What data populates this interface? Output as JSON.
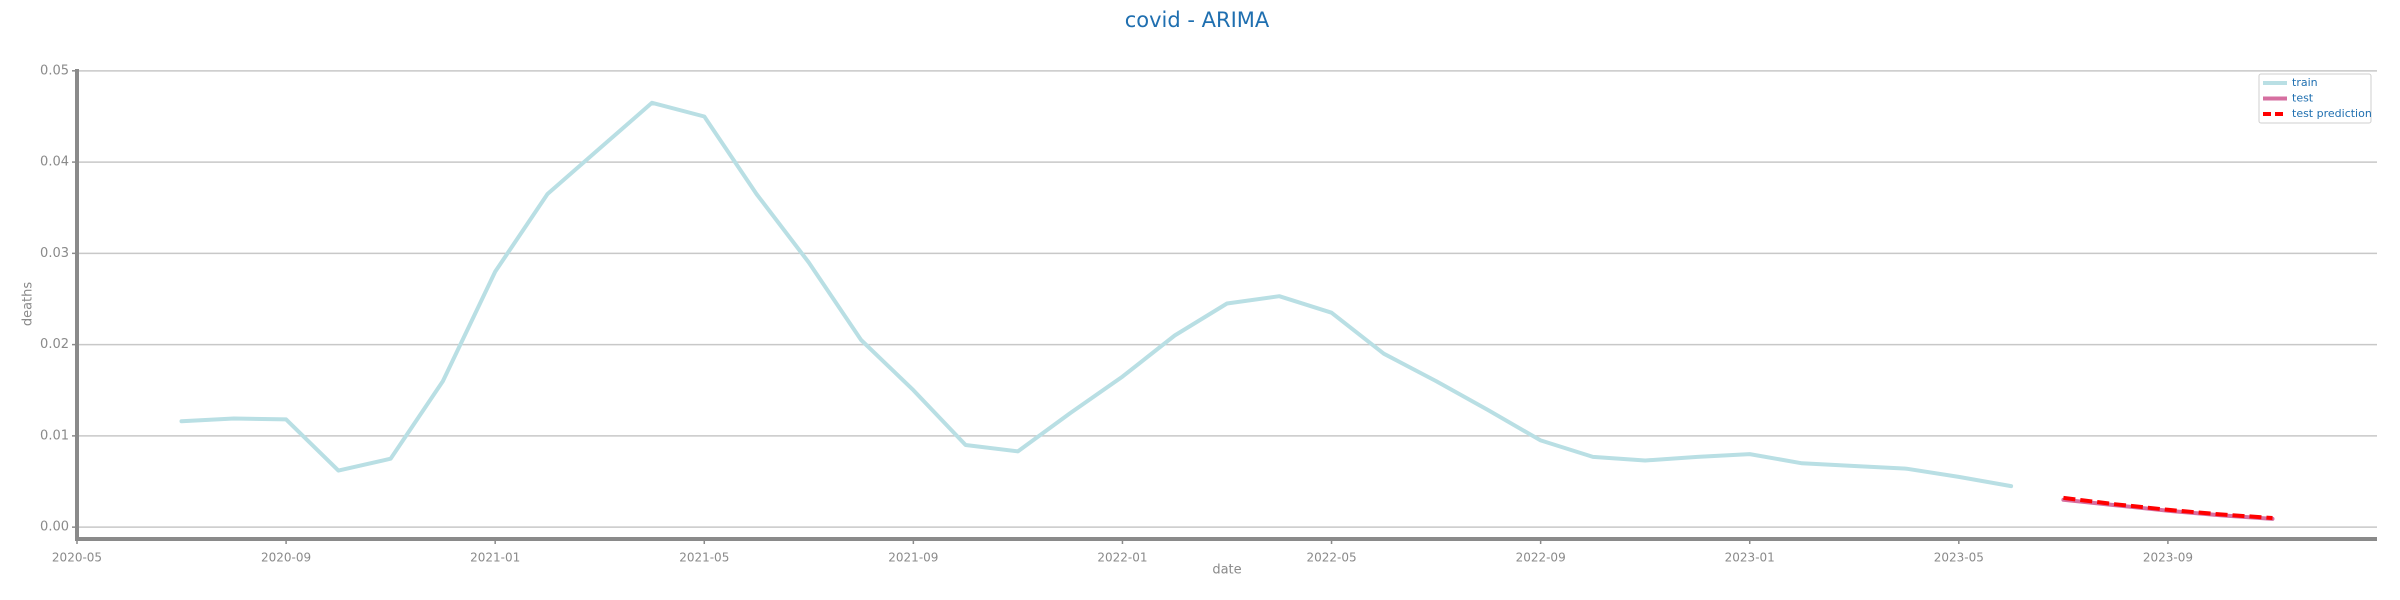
{
  "chart_data": {
    "type": "line",
    "title": "covid - ARIMA",
    "xlabel": "date",
    "ylabel": "deaths",
    "x": [
      "2020-07",
      "2020-08",
      "2020-09",
      "2020-10",
      "2020-11",
      "2020-12",
      "2021-01",
      "2021-02",
      "2021-03",
      "2021-04",
      "2021-05",
      "2021-06",
      "2021-07",
      "2021-08",
      "2021-09",
      "2021-10",
      "2021-11",
      "2021-12",
      "2022-01",
      "2022-02",
      "2022-03",
      "2022-04",
      "2022-05",
      "2022-06",
      "2022-07",
      "2022-08",
      "2022-09",
      "2022-10",
      "2022-11",
      "2022-12",
      "2023-01",
      "2023-02",
      "2023-03",
      "2023-04",
      "2023-05",
      "2023-06",
      "2023-07",
      "2023-08",
      "2023-09",
      "2023-10",
      "2023-11"
    ],
    "series": [
      {
        "name": "train",
        "color": "#b9dfe4",
        "linestyle": "solid",
        "values": [
          0.0116,
          0.0119,
          0.0118,
          0.0062,
          0.0075,
          0.016,
          0.028,
          0.0365,
          0.0415,
          0.0465,
          0.045,
          0.0365,
          0.029,
          0.0205,
          0.015,
          0.009,
          0.0083,
          0.0125,
          0.0165,
          0.021,
          0.0245,
          0.0253,
          0.0235,
          0.019,
          0.016,
          0.0128,
          0.0095,
          0.0077,
          0.0073,
          0.0077,
          0.008,
          0.007,
          0.0067,
          0.0064,
          0.0055,
          0.0045,
          null,
          null,
          null,
          null,
          null
        ]
      },
      {
        "name": "test",
        "color": "#d66fa0",
        "linestyle": "solid",
        "values": [
          null,
          null,
          null,
          null,
          null,
          null,
          null,
          null,
          null,
          null,
          null,
          null,
          null,
          null,
          null,
          null,
          null,
          null,
          null,
          null,
          null,
          null,
          null,
          null,
          null,
          null,
          null,
          null,
          null,
          null,
          null,
          null,
          null,
          null,
          null,
          null,
          0.003,
          0.0024,
          0.0018,
          0.0013,
          0.0009
        ]
      },
      {
        "name": "test prediction",
        "color": "#ff0000",
        "linestyle": "dashed",
        "values": [
          null,
          null,
          null,
          null,
          null,
          null,
          null,
          null,
          null,
          null,
          null,
          null,
          null,
          null,
          null,
          null,
          null,
          null,
          null,
          null,
          null,
          null,
          null,
          null,
          null,
          null,
          null,
          null,
          null,
          null,
          null,
          null,
          null,
          null,
          null,
          null,
          0.0032,
          0.0025,
          0.0019,
          0.0014,
          0.001
        ]
      }
    ],
    "xlim": [
      "2020-05",
      "2024-01"
    ],
    "xticks": [
      "2020-05",
      "2020-09",
      "2021-01",
      "2021-05",
      "2021-09",
      "2022-01",
      "2022-05",
      "2022-09",
      "2023-01",
      "2023-05",
      "2023-09"
    ],
    "ylim": [
      -0.0013,
      0.0502
    ],
    "yticks": [
      {
        "value": 0,
        "label": "0.00"
      },
      {
        "value": 0.01,
        "label": "0.01"
      },
      {
        "value": 0.02,
        "label": "0.02"
      },
      {
        "value": 0.03,
        "label": "0.03"
      },
      {
        "value": 0.04,
        "label": "0.04"
      },
      {
        "value": 0.05,
        "label": "0.05"
      }
    ],
    "grid": true,
    "legend": "upper right"
  }
}
